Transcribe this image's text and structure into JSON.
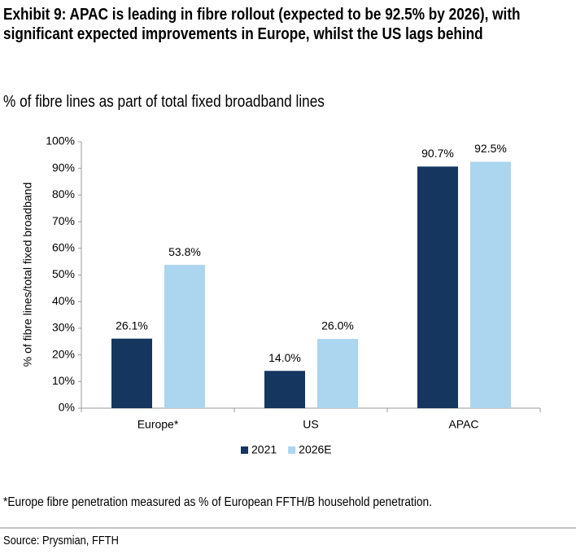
{
  "chart_data": {
    "type": "bar",
    "title": "Exhibit 9: APAC is leading in fibre rollout (expected to be 92.5% by 2026), with significant expected improvements in Europe, whilst the US lags behind",
    "subtitle": "% of fibre lines as part of total fixed broadband lines",
    "y_label": "% of fibre lines/total fixed broadband",
    "categories": [
      "Europe*",
      "US",
      "APAC"
    ],
    "series": [
      {
        "name": "2021",
        "color": "#14365f",
        "values": [
          26.1,
          14.0,
          90.7
        ],
        "value_labels": [
          "26.1%",
          "14.0%",
          "90.7%"
        ]
      },
      {
        "name": "2026E",
        "color": "#acd5ef",
        "values": [
          53.8,
          26.0,
          92.5
        ],
        "value_labels": [
          "53.8%",
          "26.0%",
          "92.5%"
        ]
      }
    ],
    "ylim": [
      0,
      100
    ],
    "yticks": [
      {
        "value": 0,
        "label": "0%"
      },
      {
        "value": 10,
        "label": "10%"
      },
      {
        "value": 20,
        "label": "20%"
      },
      {
        "value": 30,
        "label": "30%"
      },
      {
        "value": 40,
        "label": "40%"
      },
      {
        "value": 50,
        "label": "50%"
      },
      {
        "value": 60,
        "label": "60%"
      },
      {
        "value": 70,
        "label": "70%"
      },
      {
        "value": 80,
        "label": "80%"
      },
      {
        "value": 90,
        "label": "90%"
      },
      {
        "value": 100,
        "label": "100%"
      }
    ],
    "grid": false,
    "legend": "bottom",
    "footnote": "*Europe fibre penetration measured as % of European FFTH/B household penetration.",
    "source": "Source: Prysmian, FFTH"
  }
}
